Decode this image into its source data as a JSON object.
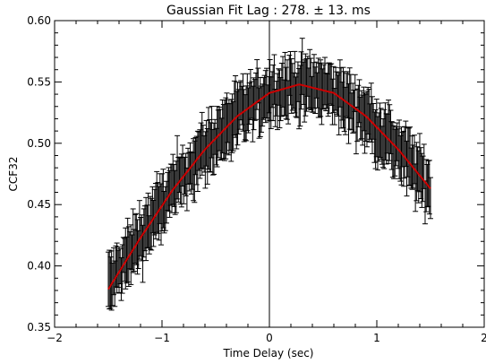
{
  "chart_data": {
    "type": "scatter",
    "title": "Gaussian Fit Lag : 278. ± 13. ms",
    "xlabel": "Time Delay (sec)",
    "ylabel": "CCF32",
    "xlim": [
      -2,
      2
    ],
    "ylim": [
      0.35,
      0.6
    ],
    "x_ticks": [
      -2,
      -1,
      0,
      1,
      2
    ],
    "x_tick_labels": [
      "−2",
      "−1",
      "0",
      "1",
      "2"
    ],
    "y_ticks": [
      0.35,
      0.4,
      0.45,
      0.5,
      0.55,
      0.6
    ],
    "y_tick_labels": [
      "0.35",
      "0.40",
      "0.45",
      "0.50",
      "0.55",
      "0.60"
    ],
    "grid": false,
    "x_minor_step": 0.2,
    "y_minor_step": 0.01,
    "vertical_reference_line_x": 0,
    "data_range_x": [
      -1.5,
      1.5
    ],
    "typical_error_bar_halfwidth": 0.02,
    "series": [
      {
        "kind": "points_with_errorbars",
        "color": "#000000",
        "anchor_x": [
          -1.5,
          -1.2,
          -0.9,
          -0.6,
          -0.3,
          0.0,
          0.3,
          0.6,
          0.9,
          1.2,
          1.5
        ],
        "anchor_y": [
          0.383,
          0.423,
          0.462,
          0.495,
          0.522,
          0.541,
          0.548,
          0.541,
          0.522,
          0.495,
          0.462
        ]
      },
      {
        "kind": "gaussian_fit",
        "color": "#cc0000",
        "peak_x": 0.278,
        "peak_y": 0.548,
        "x": [
          -1.5,
          -1.2,
          -0.9,
          -0.6,
          -0.3,
          0.0,
          0.278,
          0.6,
          0.9,
          1.2,
          1.5
        ],
        "y": [
          0.381,
          0.423,
          0.462,
          0.495,
          0.522,
          0.541,
          0.548,
          0.541,
          0.522,
          0.495,
          0.463
        ]
      }
    ]
  }
}
